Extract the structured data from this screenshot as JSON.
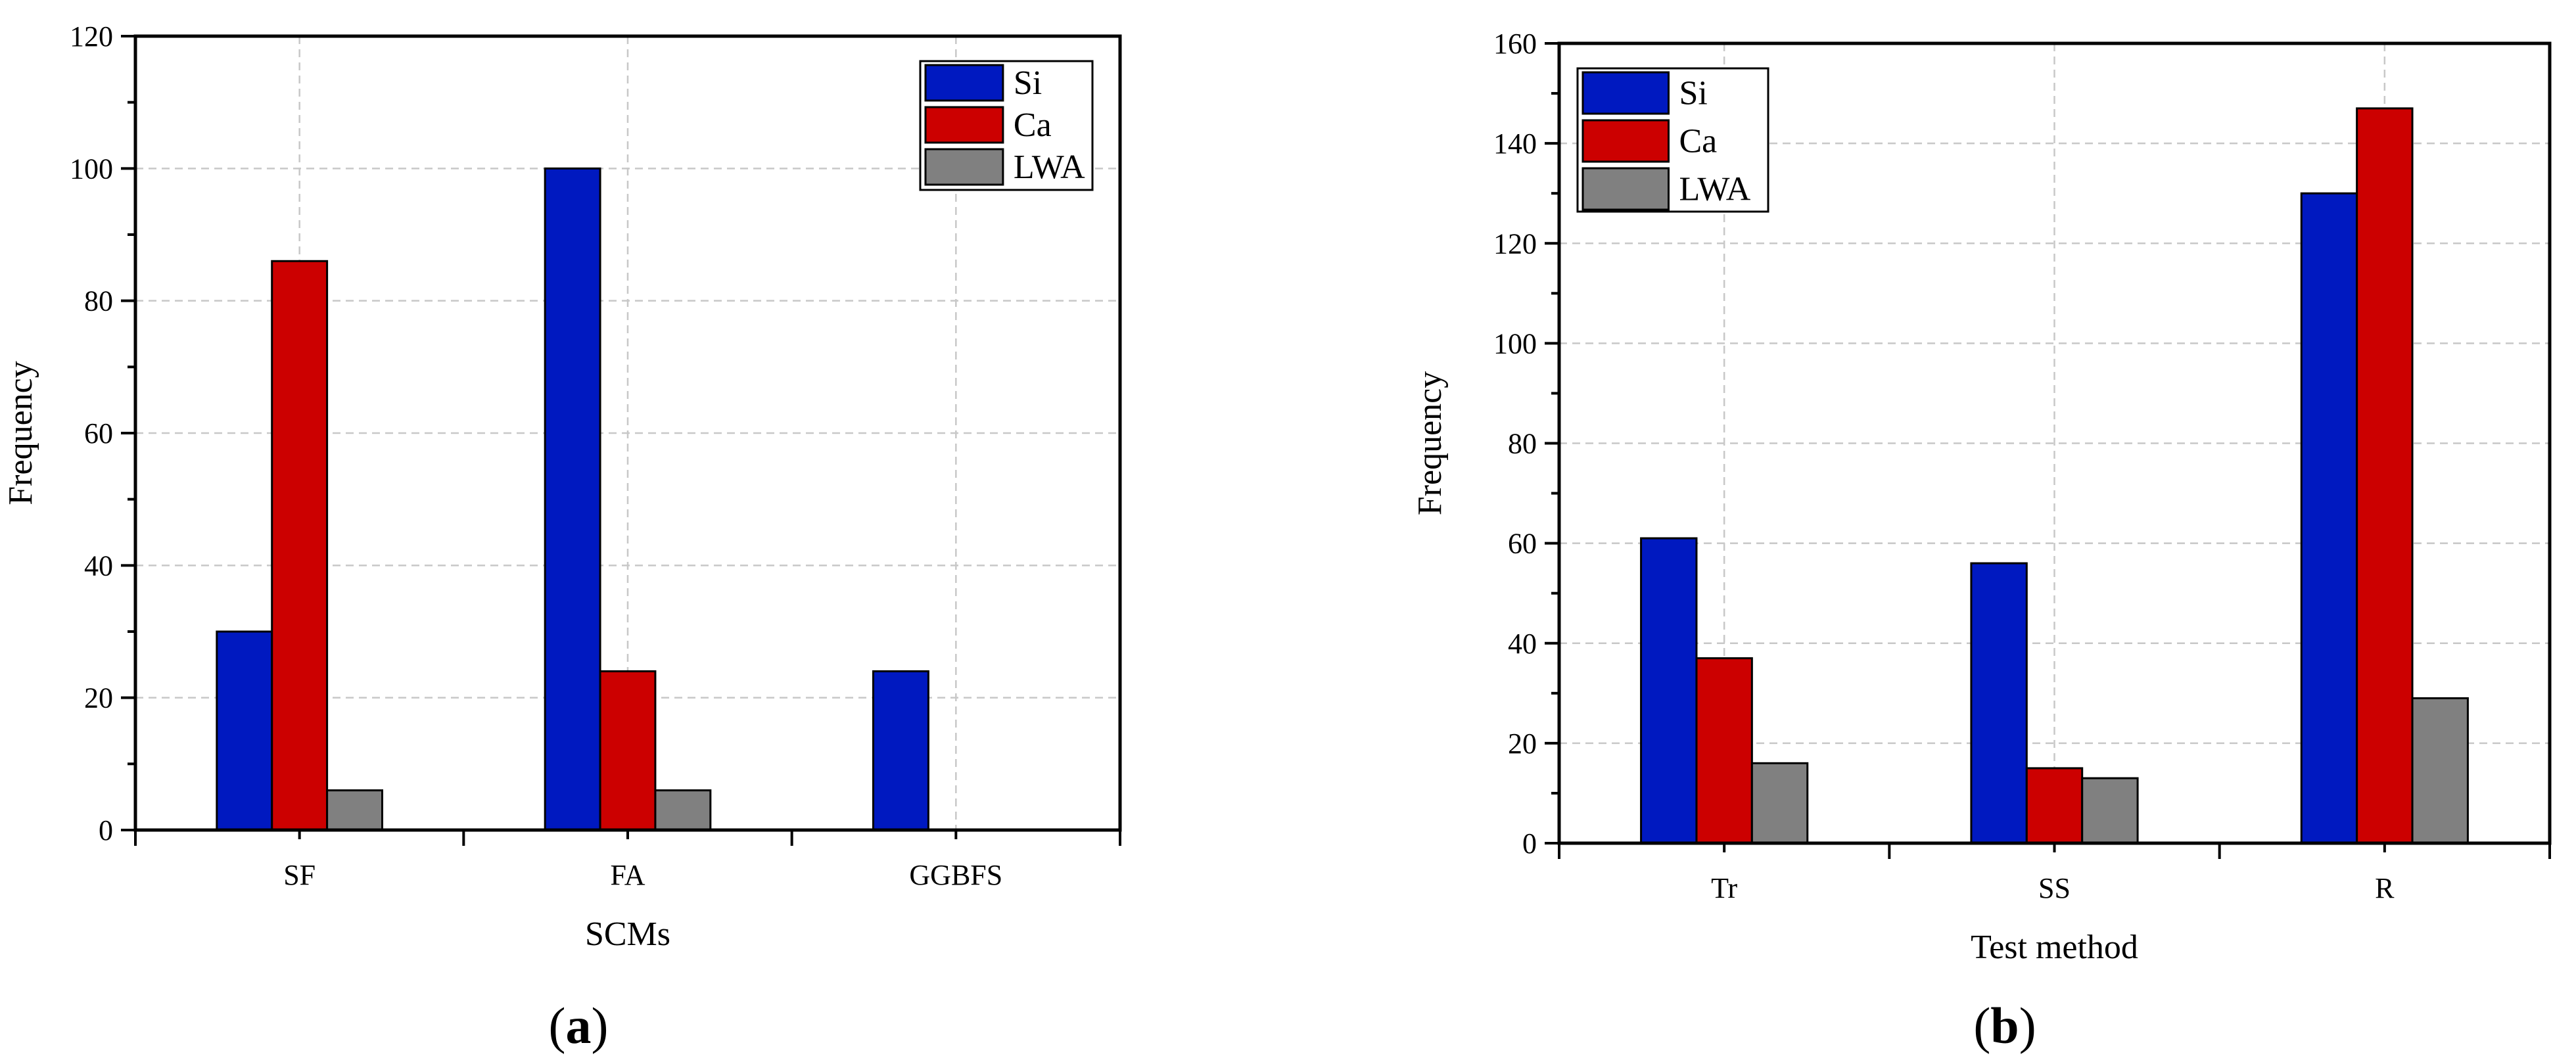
{
  "chart_data": [
    {
      "type": "bar",
      "panel_label": "a",
      "title": "",
      "xlabel": "SCMs",
      "ylabel": "Frequency",
      "categories": [
        "SF",
        "FA",
        "GGBFS"
      ],
      "ylim": [
        0,
        120
      ],
      "yticks": [
        0,
        20,
        40,
        60,
        80,
        100,
        120
      ],
      "ytick_labels": [
        "0",
        "20",
        "40",
        "60",
        "80",
        "100",
        "120"
      ],
      "grid": true,
      "legend_position": "top-right",
      "series": [
        {
          "name": "Si",
          "color": "#0019c0",
          "values": [
            30,
            100,
            24
          ]
        },
        {
          "name": "Ca",
          "color": "#cc0000",
          "values": [
            86,
            24,
            0
          ]
        },
        {
          "name": "LWA",
          "color": "#808080",
          "values": [
            6,
            6,
            0
          ]
        }
      ]
    },
    {
      "type": "bar",
      "panel_label": "b",
      "title": "",
      "xlabel": "Test method",
      "ylabel": "Frequency",
      "categories": [
        "Tr",
        "SS",
        "R"
      ],
      "ylim": [
        0,
        160
      ],
      "yticks": [
        0,
        20,
        40,
        60,
        80,
        100,
        120,
        140,
        160
      ],
      "ytick_labels": [
        "0",
        "20",
        "40",
        "60",
        "80",
        "100",
        "120",
        "140",
        "160"
      ],
      "grid": true,
      "legend_position": "top-left",
      "series": [
        {
          "name": "Si",
          "color": "#0019c0",
          "values": [
            61,
            56,
            130
          ]
        },
        {
          "name": "Ca",
          "color": "#cc0000",
          "values": [
            37,
            15,
            147
          ]
        },
        {
          "name": "LWA",
          "color": "#808080",
          "values": [
            16,
            13,
            29
          ]
        }
      ]
    }
  ]
}
